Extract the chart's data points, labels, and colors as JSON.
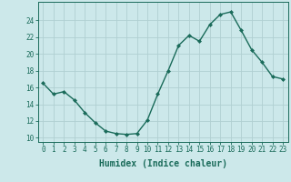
{
  "x": [
    0,
    1,
    2,
    3,
    4,
    5,
    6,
    7,
    8,
    9,
    10,
    11,
    12,
    13,
    14,
    15,
    16,
    17,
    18,
    19,
    20,
    21,
    22,
    23
  ],
  "y": [
    16.5,
    15.2,
    15.5,
    14.5,
    13.0,
    11.8,
    10.8,
    10.5,
    10.4,
    10.5,
    12.1,
    15.2,
    18.0,
    21.0,
    22.2,
    21.5,
    23.5,
    24.7,
    25.0,
    22.8,
    20.5,
    19.0,
    17.3,
    17.0
  ],
  "line_color": "#1a6b5a",
  "marker": "D",
  "marker_size": 2.0,
  "bg_color": "#cce8ea",
  "grid_color": "#b0cfd2",
  "xlabel": "Humidex (Indice chaleur)",
  "ylabel_ticks": [
    10,
    12,
    14,
    16,
    18,
    20,
    22,
    24
  ],
  "ylim": [
    9.5,
    26.2
  ],
  "xlim": [
    -0.5,
    23.5
  ],
  "xticks": [
    0,
    1,
    2,
    3,
    4,
    5,
    6,
    7,
    8,
    9,
    10,
    11,
    12,
    13,
    14,
    15,
    16,
    17,
    18,
    19,
    20,
    21,
    22,
    23
  ],
  "tick_color": "#1a6b5a",
  "label_fontsize": 7.0,
  "tick_fontsize": 5.5,
  "linewidth": 1.0
}
